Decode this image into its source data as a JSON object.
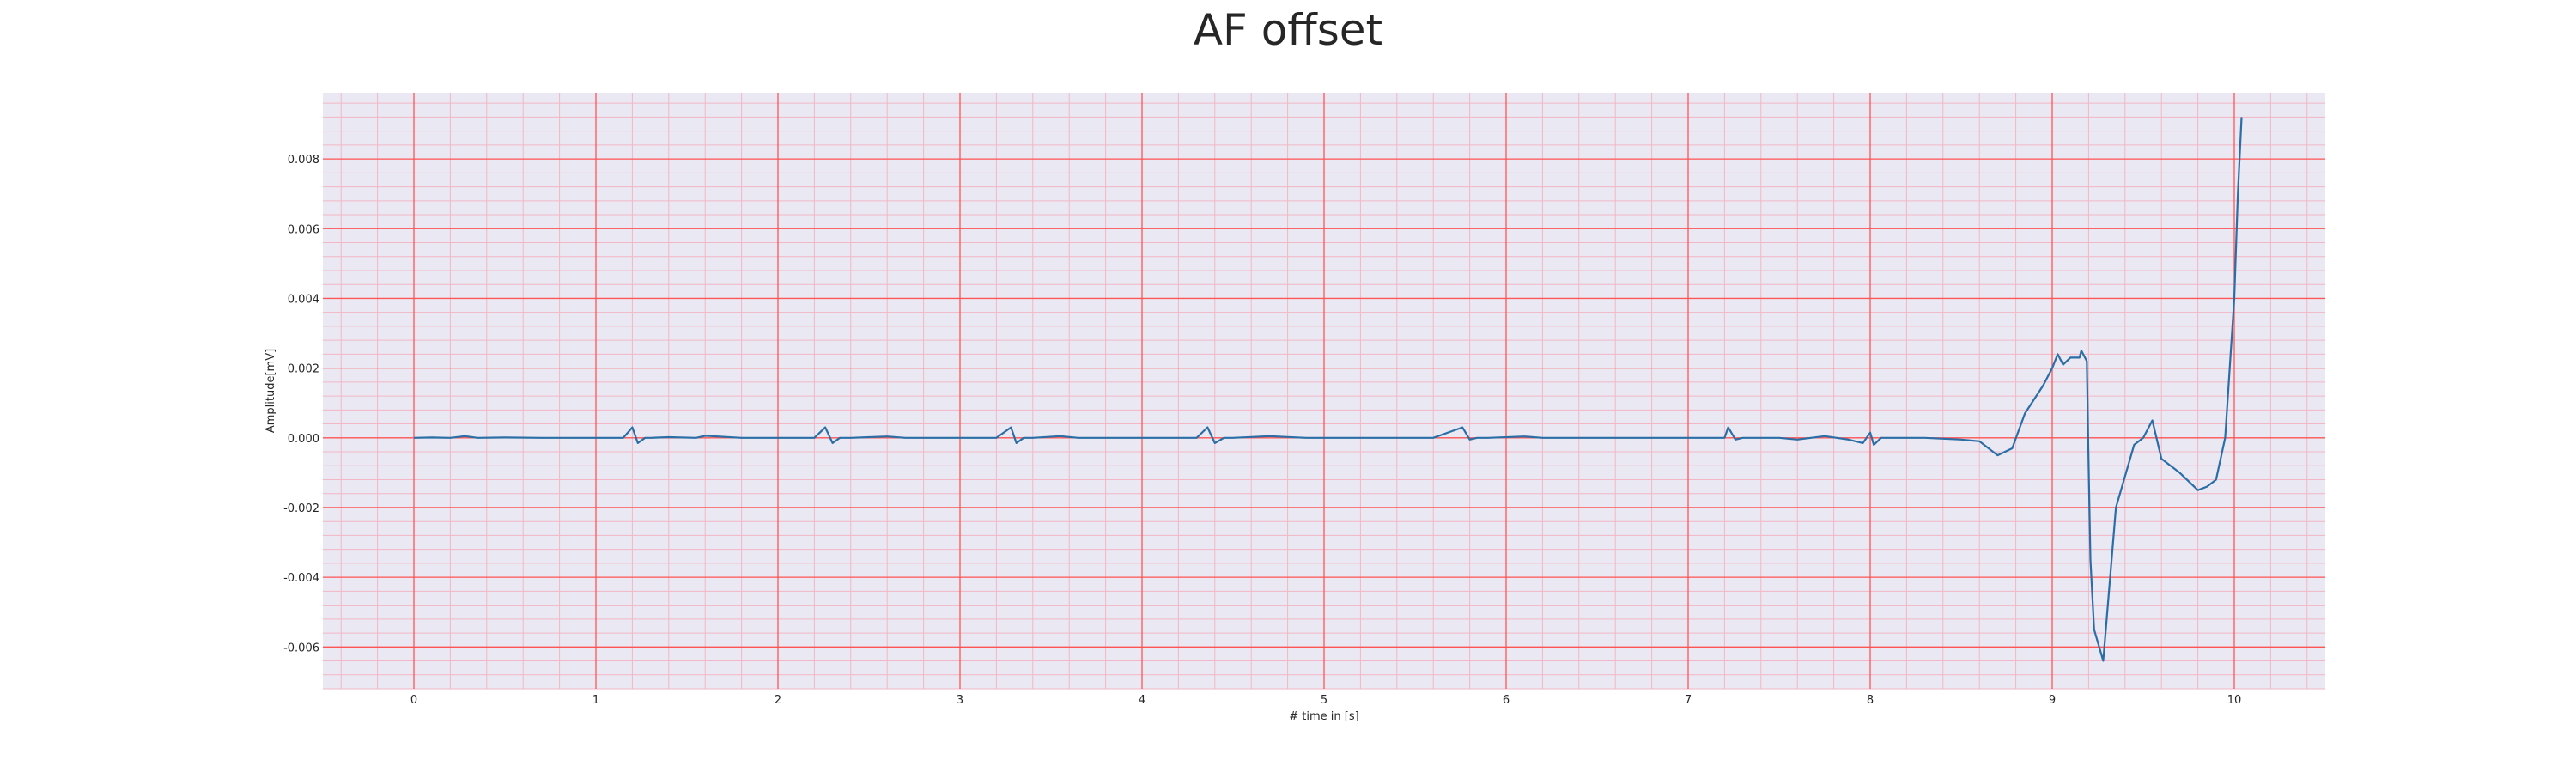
{
  "chart_data": {
    "type": "line",
    "title": "AF offset",
    "xlabel": "# time in [s]",
    "ylabel": "Amplitude[mV]",
    "xlim": [
      -0.5,
      10.5
    ],
    "ylim": [
      -0.0072,
      0.0099
    ],
    "x_ticks": [
      "0",
      "1",
      "2",
      "3",
      "4",
      "5",
      "6",
      "7",
      "8",
      "9",
      "10"
    ],
    "y_ticks": [
      "0.008",
      "0.006",
      "0.004",
      "0.002",
      "0.000",
      "-0.002",
      "-0.004",
      "-0.006"
    ],
    "grid": true,
    "colors": {
      "background": "#eae9f3",
      "major_grid": "#ff5555",
      "minor_grid": "#f2b6c4",
      "line": "#2b6ea6"
    },
    "series": [
      {
        "x": [
          0,
          0.1,
          0.2,
          0.28,
          0.35,
          0.5,
          0.7,
          1.0,
          1.15,
          1.2,
          1.23,
          1.27,
          1.3,
          1.4,
          1.55,
          1.6,
          1.8,
          2.0,
          2.2,
          2.26,
          2.3,
          2.34,
          2.4,
          2.5,
          2.6,
          2.7,
          2.9,
          3.2,
          3.28,
          3.31,
          3.35,
          3.4,
          3.55,
          3.65,
          3.75,
          4.0,
          4.3,
          4.36,
          4.4,
          4.45,
          4.5,
          4.7,
          4.9,
          5.2,
          5.6,
          5.76,
          5.8,
          5.84,
          5.9,
          6.1,
          6.2,
          6.5,
          6.9,
          7.2,
          7.22,
          7.26,
          7.3,
          7.5,
          7.6,
          7.75,
          7.88,
          7.96,
          8.0,
          8.02,
          8.06,
          8.15,
          8.3,
          8.5,
          8.6,
          8.7,
          8.78,
          8.85,
          8.95,
          9.0,
          9.03,
          9.06,
          9.1,
          9.15,
          9.16,
          9.19,
          9.2,
          9.21,
          9.23,
          9.28,
          9.35,
          9.45,
          9.5,
          9.55,
          9.6,
          9.7,
          9.8,
          9.85,
          9.9,
          9.95,
          10.0,
          10.02,
          10.04
        ],
        "y": [
          0.0,
          1e-05,
          0.0,
          5e-05,
          0.0,
          1e-05,
          0.0,
          0.0,
          0.0,
          0.0003,
          -0.00015,
          0.0,
          0.0,
          2e-05,
          0.0,
          6e-05,
          0.0,
          0.0,
          0.0,
          0.0003,
          -0.00015,
          0.0,
          0.0,
          2e-05,
          4e-05,
          0.0,
          0.0,
          0.0,
          0.0003,
          -0.00015,
          0.0,
          0.0,
          5e-05,
          0.0,
          0.0,
          0.0,
          0.0,
          0.0003,
          -0.00015,
          0.0,
          0.0,
          5e-05,
          0.0,
          0.0,
          0.0,
          0.0003,
          -5e-05,
          0.0,
          0.0,
          4e-05,
          0.0,
          0.0,
          0.0,
          0.0,
          0.0003,
          -5e-05,
          0.0,
          0.0,
          -5e-05,
          5e-05,
          -5e-05,
          -0.00015,
          0.00015,
          -0.0002,
          0.0,
          0.0,
          0.0,
          -5e-05,
          -0.0001,
          -0.0005,
          -0.0003,
          0.0007,
          0.0015,
          0.002,
          0.0024,
          0.0021,
          0.0023,
          0.0023,
          0.0025,
          0.0022,
          -0.0008,
          -0.0035,
          -0.0055,
          -0.0064,
          -0.002,
          -0.0002,
          0.0,
          0.0005,
          -0.0006,
          -0.001,
          -0.0015,
          -0.0014,
          -0.0012,
          0.0,
          0.004,
          0.007,
          0.0092
        ]
      }
    ]
  }
}
